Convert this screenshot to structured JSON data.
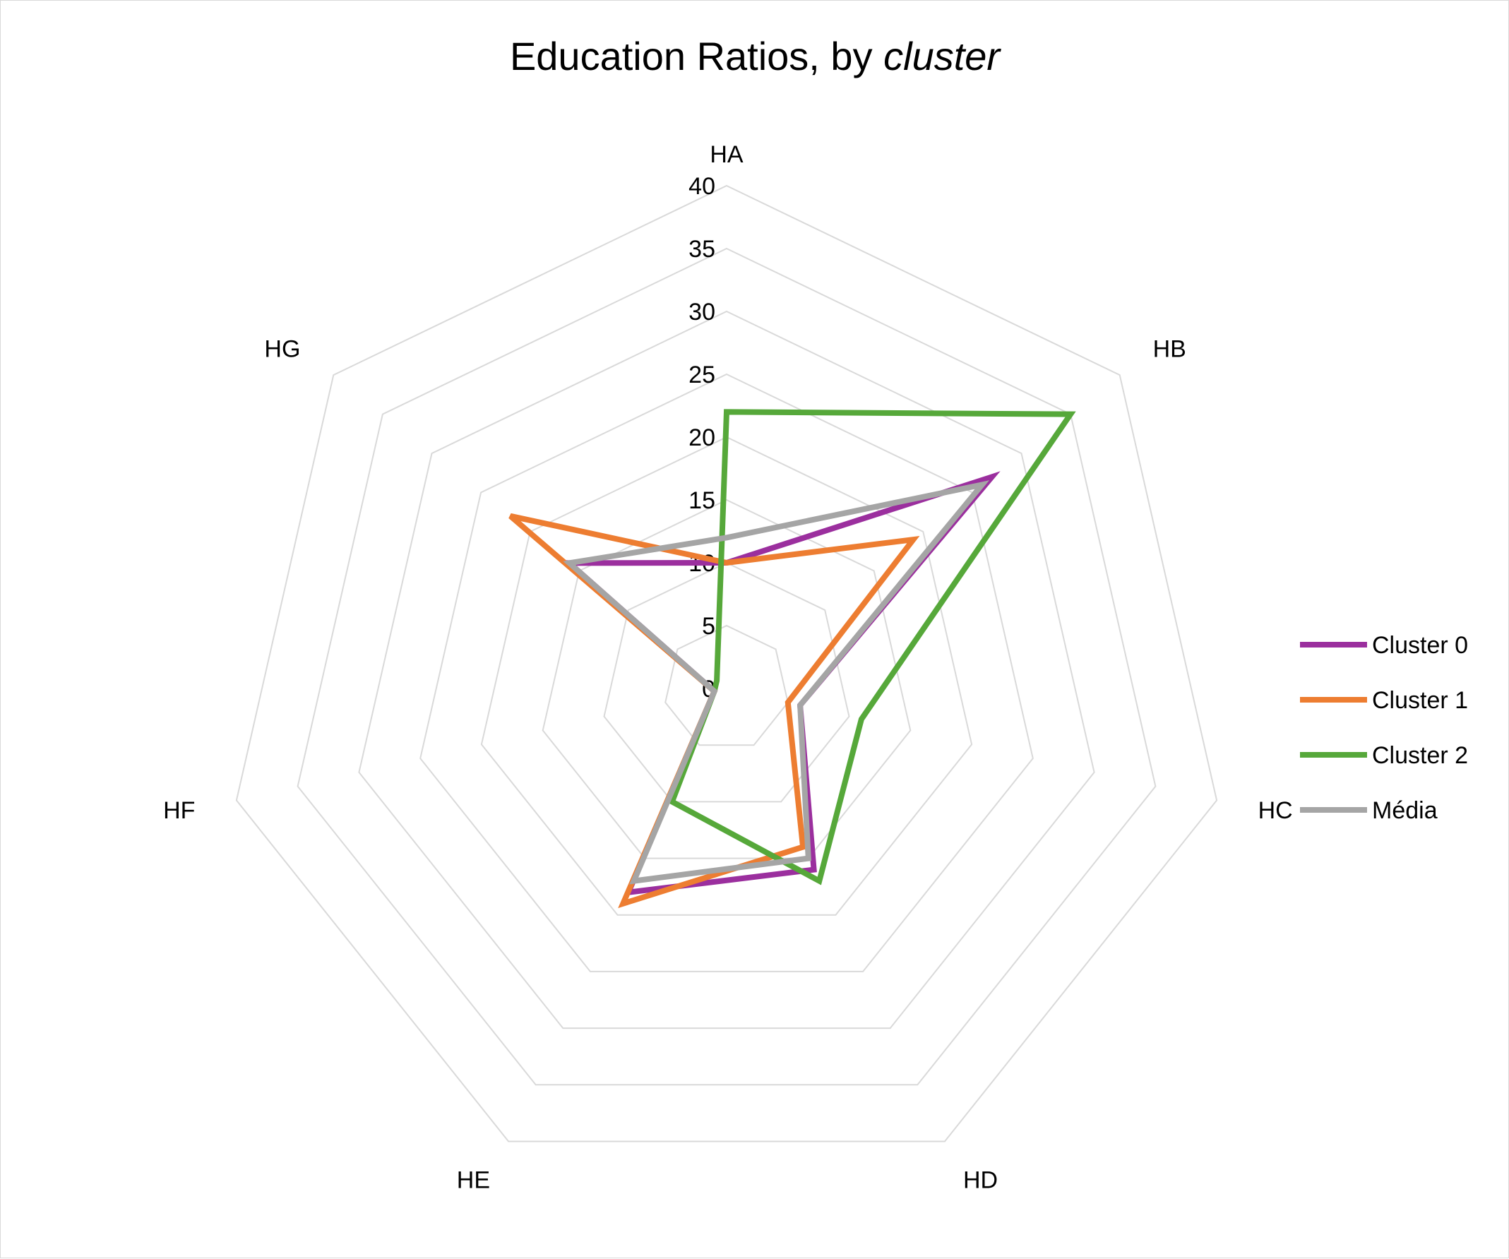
{
  "chart_data": {
    "type": "radar",
    "title": "Education Ratios, by ",
    "title_italic": "cluster",
    "axes": [
      "HA",
      "HB",
      "HC",
      "HD",
      "HE",
      "HF",
      "HG"
    ],
    "rlim": [
      0,
      40
    ],
    "ticks": [
      "0",
      "5",
      "10",
      "15",
      "20",
      "25",
      "30",
      "35",
      "40"
    ],
    "grid": true,
    "legend": "right",
    "series": [
      {
        "name": "Cluster 0",
        "color": "#9b2f9e",
        "values": [
          10,
          27,
          6,
          16,
          18,
          1,
          16
        ]
      },
      {
        "name": "Cluster 1",
        "color": "#ed7d31",
        "values": [
          10,
          19,
          5,
          14,
          19,
          1,
          22
        ]
      },
      {
        "name": "Cluster 2",
        "color": "#56a83a",
        "values": [
          22,
          35,
          11,
          17,
          10,
          1,
          1
        ]
      },
      {
        "name": "Média",
        "color": "#a5a5a5",
        "values": [
          12,
          26,
          6,
          15,
          17,
          1,
          16
        ]
      }
    ]
  }
}
